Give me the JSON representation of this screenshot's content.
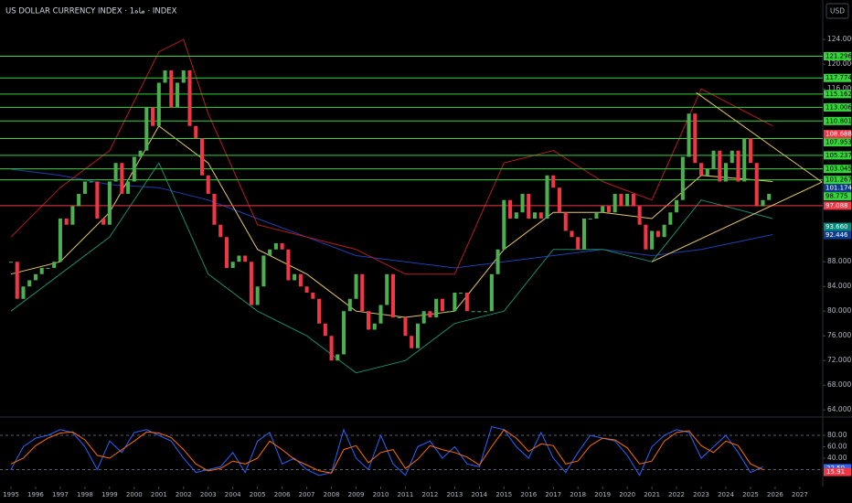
{
  "header": {
    "title": "US DOLLAR CURRENCY INDEX · 1ماه · INDEX",
    "currency": "USD"
  },
  "chart_data": [
    {
      "type": "candlestick",
      "xlim": [
        1994.555,
        2027.93
      ],
      "ylim": [
        63,
        130.4
      ],
      "yticks": [
        {
          "value": 64,
          "label": "64.000"
        },
        {
          "value": 68,
          "label": "68.000"
        },
        {
          "value": 72,
          "label": "72.000"
        },
        {
          "value": 76,
          "label": "76.000"
        },
        {
          "value": 80,
          "label": "80.000"
        },
        {
          "value": 84,
          "label": "84.000"
        },
        {
          "value": 88,
          "label": "88.000"
        },
        {
          "value": 116,
          "label": "116.000"
        },
        {
          "value": 120,
          "label": "120.000"
        },
        {
          "value": 124,
          "label": "124.000"
        }
      ],
      "up_color": "#4caf50",
      "down_color": "#f23645",
      "x": [
        1995,
        1995.25,
        1995.5,
        1995.75,
        1996,
        1996.25,
        1996.5,
        1996.75,
        1997,
        1997.25,
        1997.5,
        1997.75,
        1998,
        1998.25,
        1998.5,
        1998.75,
        1999,
        1999.25,
        1999.5,
        1999.75,
        2000,
        2000.25,
        2000.5,
        2000.75,
        2001,
        2001.25,
        2001.5,
        2001.75,
        2002,
        2002.25,
        2002.5,
        2002.75,
        2003,
        2003.25,
        2003.5,
        2003.75,
        2004,
        2004.25,
        2004.5,
        2004.75,
        2005,
        2005.25,
        2005.5,
        2005.75,
        2006,
        2006.25,
        2006.5,
        2006.75,
        2007,
        2007.25,
        2007.5,
        2007.75,
        2008,
        2008.25,
        2008.5,
        2008.75,
        2009,
        2009.25,
        2009.5,
        2009.75,
        2010,
        2010.25,
        2010.5,
        2010.75,
        2011,
        2011.25,
        2011.5,
        2011.75,
        2012,
        2012.25,
        2012.5,
        2012.75,
        2013,
        2013.25,
        2013.5,
        2013.75,
        2014,
        2014.25,
        2014.5,
        2014.75,
        2015,
        2015.25,
        2015.5,
        2015.75,
        2016,
        2016.25,
        2016.5,
        2016.75,
        2017,
        2017.25,
        2017.5,
        2017.75,
        2018,
        2018.25,
        2018.5,
        2018.75,
        2019,
        2019.25,
        2019.5,
        2019.75,
        2020,
        2020.25,
        2020.5,
        2020.75,
        2021,
        2021.25,
        2021.5,
        2021.75,
        2022,
        2022.25,
        2022.5,
        2022.75,
        2023,
        2023.25,
        2023.5,
        2023.75,
        2024,
        2024.25,
        2024.5,
        2024.75,
        2025,
        2025.25,
        2025.5,
        2025.75
      ],
      "close": [
        88,
        82,
        84,
        85,
        86,
        87,
        87,
        88,
        95,
        94,
        97,
        99,
        101,
        101,
        95,
        94,
        101,
        104,
        99,
        101,
        105,
        106,
        113,
        110,
        117,
        119,
        113,
        117,
        119,
        110,
        108,
        102,
        99,
        94,
        92,
        87,
        88,
        89,
        88,
        81,
        84,
        89,
        90,
        91,
        90,
        85,
        86,
        84,
        83,
        82,
        78,
        76,
        72,
        73,
        80,
        82,
        86,
        80,
        77,
        78,
        81,
        86,
        79,
        79,
        76,
        74,
        78,
        80,
        79,
        82,
        80,
        80,
        83,
        83,
        80,
        80,
        80,
        80,
        86,
        90,
        98,
        95,
        96,
        99,
        95,
        96,
        95,
        102,
        100,
        96,
        93,
        92,
        90,
        95,
        95,
        96,
        97,
        96,
        99,
        97,
        99,
        97,
        94,
        90,
        93,
        92,
        94,
        96,
        98,
        105,
        112,
        104,
        102,
        103,
        106,
        101,
        104,
        106,
        101,
        108,
        104,
        97,
        98,
        99
      ],
      "lines": [
        {
          "color": "#1e3fae",
          "x": [
            1995,
            1997,
            1999,
            2001,
            2003,
            2005,
            2007,
            2009,
            2011,
            2013,
            2015,
            2017,
            2019,
            2021,
            2023,
            2025.9
          ],
          "values": [
            103,
            102,
            100.5,
            100,
            98,
            95,
            92,
            89,
            88,
            87,
            88,
            89,
            90,
            89,
            90,
            92.4
          ]
        },
        {
          "color": "#e8c66b",
          "x": [
            1995,
            1997,
            1999,
            2001,
            2003,
            2005,
            2007,
            2009,
            2011,
            2013,
            2015,
            2017,
            2019,
            2021,
            2023,
            2025.9
          ],
          "values": [
            86,
            88,
            96,
            110,
            104,
            90,
            86,
            80,
            79,
            80,
            90,
            96,
            96,
            95,
            102,
            101
          ]
        },
        {
          "color": "#b71c1c",
          "x": [
            1995,
            1997,
            1999,
            2001,
            2002,
            2003,
            2005,
            2007,
            2009,
            2011,
            2013,
            2015,
            2017,
            2019,
            2021,
            2023,
            2025.9
          ],
          "values": [
            92,
            100,
            106,
            122,
            124,
            112,
            94,
            92,
            90,
            86,
            86,
            104,
            106,
            101,
            98,
            116,
            110
          ]
        },
        {
          "color": "#1b8a6b",
          "x": [
            1995,
            1997,
            1999,
            2001,
            2003,
            2005,
            2007,
            2009,
            2011,
            2013,
            2015,
            2017,
            2019,
            2021,
            2023,
            2025.9
          ],
          "values": [
            80,
            86,
            92,
            104,
            86,
            80,
            76,
            70,
            72,
            78,
            80,
            90,
            90,
            88,
            98,
            95
          ]
        }
      ],
      "trendlines": [
        {
          "color": "#e8c66b",
          "x": [
            2022.8,
            2027.9
          ],
          "y": [
            115.4,
            100.9
          ]
        },
        {
          "color": "#e8c66b",
          "x": [
            2021,
            2027.9
          ],
          "y": [
            88,
            100.9
          ]
        }
      ],
      "levels": [
        {
          "value": 121.296,
          "color": "#35d43a",
          "line": true
        },
        {
          "value": 117.774,
          "color": "#35d43a",
          "line": true
        },
        {
          "value": 115.162,
          "color": "#35d43a",
          "line": true
        },
        {
          "value": 113.006,
          "color": "#35d43a",
          "line": true
        },
        {
          "value": 110.801,
          "color": "#35d43a",
          "line": true
        },
        {
          "value": 108.688,
          "color": "#f23645",
          "line": false
        },
        {
          "value": 107.953,
          "color": "#35d43a",
          "line": true
        },
        {
          "value": 105.237,
          "color": "#35d43a",
          "line": true
        },
        {
          "value": 103.045,
          "color": "#35d43a",
          "line": true
        },
        {
          "value": 101.267,
          "color": "#35d43a",
          "line": true
        },
        {
          "value": 101.174,
          "color": "#0d3c8c",
          "line": false
        },
        {
          "value": 98.775,
          "color": "#35d43a",
          "line": false
        },
        {
          "value": 97.088,
          "color": "#f23645",
          "line": true
        },
        {
          "value": 93.66,
          "label": "93.660",
          "color": "#00897b",
          "line": false
        },
        {
          "value": 92.446,
          "color": "#0d3c8c",
          "line": false
        }
      ]
    },
    {
      "type": "stochastic",
      "xlim": [
        1994.555,
        2027.93
      ],
      "ylim": [
        -9.6,
        108.8
      ],
      "xticks": [
        1995,
        1996,
        1997,
        1998,
        1999,
        2000,
        2001,
        2002,
        2003,
        2004,
        2005,
        2006,
        2007,
        2008,
        2009,
        2010,
        2011,
        2012,
        2013,
        2014,
        2015,
        2016,
        2017,
        2018,
        2019,
        2020,
        2021,
        2022,
        2023,
        2024,
        2025,
        2026,
        2027
      ],
      "yticks": [
        {
          "value": 40,
          "label": "40.00"
        },
        {
          "value": 60,
          "label": "60.00"
        },
        {
          "value": 80,
          "label": "80.00"
        }
      ],
      "bands": [
        20,
        80
      ],
      "x": [
        1995,
        1995.5,
        1996,
        1996.5,
        1997,
        1997.5,
        1998,
        1998.5,
        1999,
        1999.5,
        2000,
        2000.5,
        2001,
        2001.5,
        2002,
        2002.5,
        2003,
        2003.5,
        2004,
        2004.5,
        2005,
        2005.5,
        2006,
        2006.5,
        2007,
        2007.5,
        2008,
        2008.5,
        2009,
        2009.5,
        2010,
        2010.5,
        2011,
        2011.5,
        2012,
        2012.5,
        2013,
        2013.5,
        2014,
        2014.5,
        2015,
        2015.5,
        2016,
        2016.5,
        2017,
        2017.5,
        2018,
        2018.5,
        2019,
        2019.5,
        2020,
        2020.5,
        2021,
        2021.5,
        2022,
        2022.5,
        2023,
        2023.5,
        2024,
        2024.5,
        2025,
        2025.5
      ],
      "series": [
        {
          "color": "#2962ff",
          "values": [
            20,
            60,
            75,
            80,
            90,
            85,
            60,
            20,
            70,
            50,
            85,
            90,
            80,
            70,
            40,
            15,
            20,
            25,
            50,
            15,
            70,
            85,
            30,
            40,
            20,
            10,
            15,
            90,
            40,
            20,
            80,
            30,
            10,
            60,
            70,
            40,
            60,
            30,
            25,
            95,
            90,
            60,
            40,
            85,
            40,
            15,
            50,
            80,
            75,
            70,
            45,
            10,
            60,
            80,
            90,
            85,
            40,
            60,
            80,
            50,
            15,
            25
          ]
        },
        {
          "color": "#ff6d00",
          "values": [
            30,
            40,
            62,
            75,
            84,
            86,
            72,
            45,
            40,
            55,
            70,
            86,
            84,
            76,
            55,
            30,
            18,
            22,
            35,
            30,
            40,
            70,
            55,
            38,
            28,
            18,
            14,
            55,
            62,
            32,
            50,
            55,
            22,
            38,
            62,
            55,
            50,
            42,
            28,
            60,
            90,
            75,
            52,
            65,
            62,
            30,
            35,
            62,
            75,
            72,
            58,
            30,
            35,
            70,
            85,
            88,
            62,
            50,
            70,
            62,
            30,
            20
          ]
        }
      ],
      "markers": [
        {
          "value": 22.5,
          "label": "22.50",
          "color": "#2962ff"
        },
        {
          "value": 15.91,
          "label": "15.91",
          "color": "#f23645"
        }
      ]
    }
  ]
}
